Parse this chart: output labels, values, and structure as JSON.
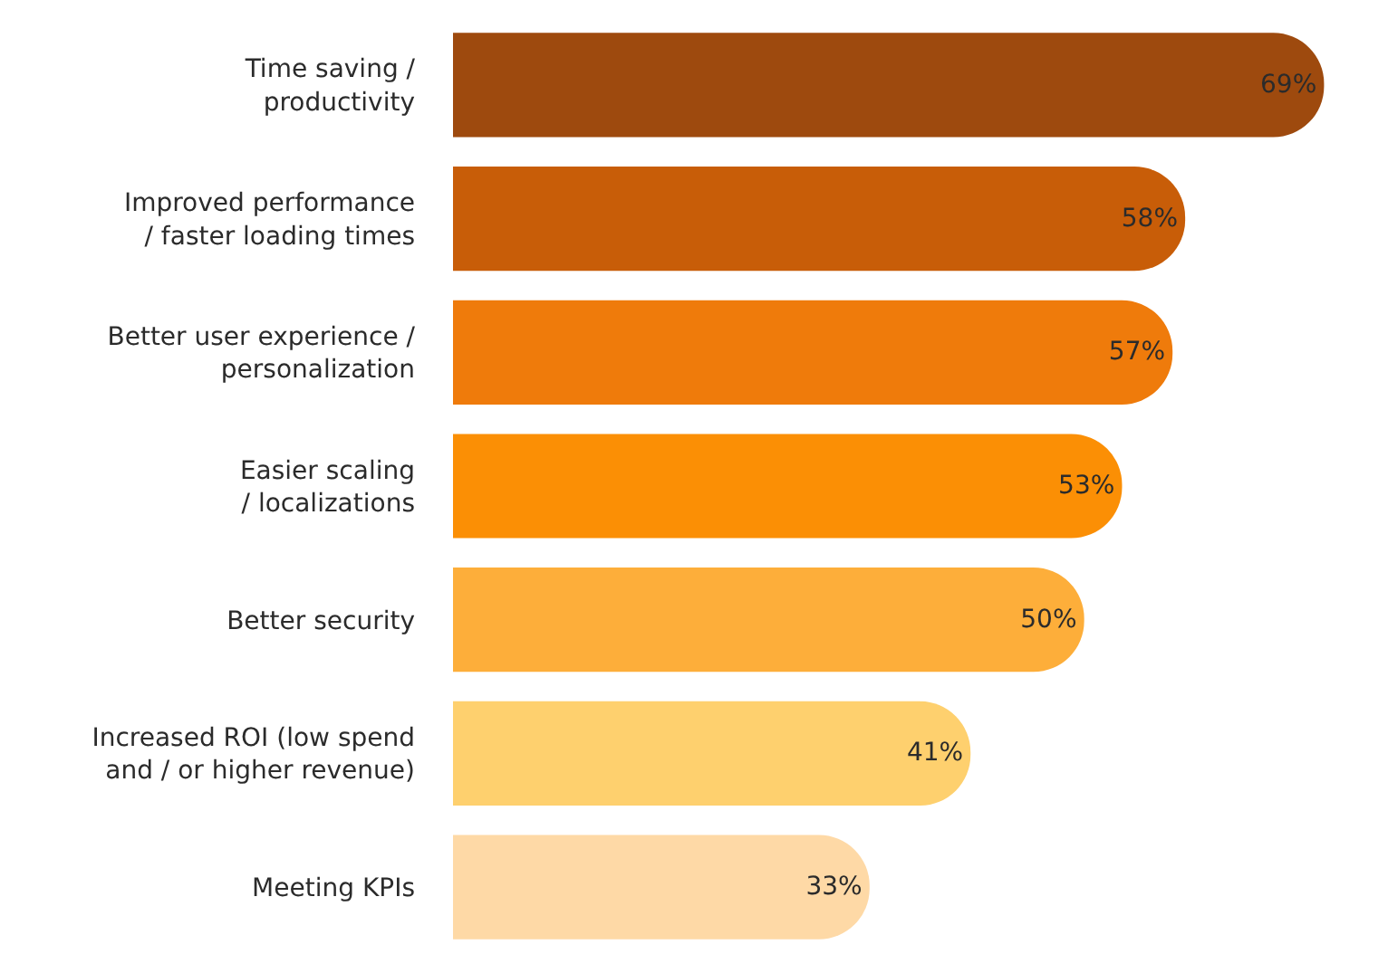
{
  "chart_data": {
    "type": "bar",
    "orientation": "horizontal",
    "categories": [
      "Time saving /\nproductivity",
      "Improved performance\n/ faster loading times",
      "Better user experience /\npersonalization",
      "Easier scaling\n/ localizations",
      "Better security",
      "Increased ROI (low spend\nand / or higher revenue)",
      "Meeting KPIs"
    ],
    "values": [
      69,
      58,
      57,
      53,
      50,
      41,
      33
    ],
    "colors": [
      "#9e4a0e",
      "#c85d08",
      "#ef7b0b",
      "#fb8f05",
      "#fdae3a",
      "#fed06e",
      "#fed9a6"
    ],
    "value_labels": [
      "69%",
      "58%",
      "57%",
      "53%",
      "50%",
      "41%",
      "33%"
    ],
    "legend": false
  }
}
